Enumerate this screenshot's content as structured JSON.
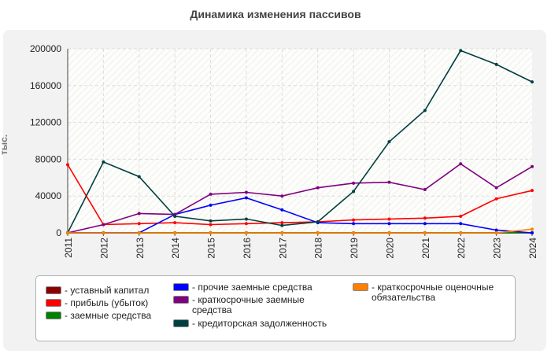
{
  "chart_data": {
    "type": "line",
    "title": "Динамика изменения пассивов",
    "ylabel": "тыс.",
    "xlabel": "",
    "categories": [
      "2011",
      "2012",
      "2013",
      "2014",
      "2015",
      "2016",
      "2017",
      "2018",
      "2019",
      "2020",
      "2021",
      "2022",
      "2023",
      "2024"
    ],
    "ylim": [
      0,
      200000
    ],
    "yticks": [
      0,
      40000,
      80000,
      120000,
      160000,
      200000
    ],
    "ytick_labels": [
      "0",
      "40000",
      "80000",
      "120000",
      "160000",
      "200000"
    ],
    "grid": true,
    "legend_position": "bottom",
    "series": [
      {
        "name": "- уставный капитал",
        "color": "#8b0000",
        "values": [
          100,
          100,
          100,
          100,
          100,
          100,
          100,
          100,
          100,
          100,
          100,
          100,
          100,
          100
        ]
      },
      {
        "name": "- прибыль (убыток)",
        "color": "#ff0000",
        "values": [
          74000,
          9000,
          10000,
          11000,
          9000,
          10000,
          11000,
          12000,
          14000,
          15000,
          16000,
          18000,
          37000,
          46000
        ]
      },
      {
        "name": "- заемные средства",
        "color": "#008000",
        "values": [
          0,
          0,
          0,
          0,
          0,
          0,
          0,
          0,
          0,
          0,
          0,
          0,
          0,
          0
        ]
      },
      {
        "name": "- прочие заемные средства",
        "color": "#0000ff",
        "values": [
          0,
          0,
          0,
          20000,
          30000,
          38000,
          25000,
          11000,
          10000,
          10000,
          10000,
          10000,
          3000,
          0
        ]
      },
      {
        "name": "- краткосрочные заемные средства",
        "color": "#800080",
        "values": [
          0,
          9000,
          21000,
          20000,
          42000,
          44000,
          40000,
          49000,
          54000,
          55000,
          47000,
          75000,
          49000,
          72000
        ]
      },
      {
        "name": "- кредиторская задолженность",
        "color": "#004040",
        "values": [
          0,
          77000,
          61000,
          18000,
          13000,
          15000,
          8000,
          12000,
          45000,
          99000,
          133000,
          198000,
          183000,
          164000
        ]
      },
      {
        "name": "- краткосрочные оценочные обязательства",
        "color": "#ff8000",
        "values": [
          0,
          0,
          0,
          0,
          0,
          0,
          0,
          0,
          0,
          0,
          0,
          0,
          0,
          4000
        ]
      }
    ]
  },
  "legend": {
    "col1": [
      "- уставный капитал",
      "- прибыль (убыток)",
      "- заемные средства"
    ],
    "col2": [
      "- прочие заемные средства",
      "- краткосрочные заемные средства",
      "- кредиторская задолженность"
    ],
    "col3": [
      "- краткосрочные оценочные обязательства"
    ]
  }
}
